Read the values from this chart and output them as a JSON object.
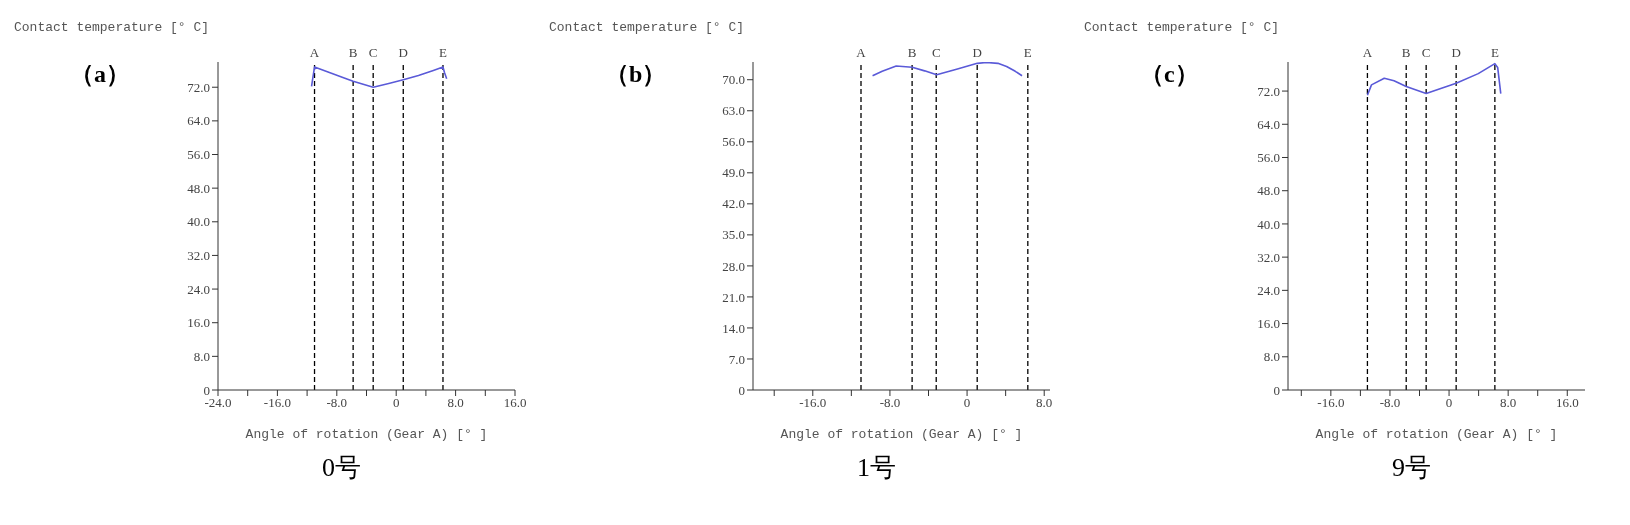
{
  "chart_data": [
    {
      "type": "line",
      "title": "（a）",
      "subtitle": "0号",
      "xlabel": "Angle of rotation (Gear A) [° ]",
      "ylabel": "Contact temperature [° C]",
      "marker": "none",
      "line_style": "solid",
      "xlim": [
        -24,
        16
      ],
      "ylim": [
        0,
        78
      ],
      "xticks": [
        {
          "value": -24,
          "label": "-24.0"
        },
        {
          "value": -20,
          "label": null
        },
        {
          "value": -16,
          "label": "-16.0"
        },
        {
          "value": -12,
          "label": null
        },
        {
          "value": -8,
          "label": "-8.0"
        },
        {
          "value": -4,
          "label": null
        },
        {
          "value": 0,
          "label": "0"
        },
        {
          "value": 4,
          "label": null
        },
        {
          "value": 8,
          "label": "8.0"
        },
        {
          "value": 12,
          "label": null
        },
        {
          "value": 16,
          "label": "16.0"
        }
      ],
      "yticks": [
        {
          "value": 0,
          "label": "0"
        },
        {
          "value": 8,
          "label": "8.0"
        },
        {
          "value": 16,
          "label": "16.0"
        },
        {
          "value": 24,
          "label": "24.0"
        },
        {
          "value": 32,
          "label": "32.0"
        },
        {
          "value": 40,
          "label": "40.0"
        },
        {
          "value": 48,
          "label": "48.0"
        },
        {
          "value": 56,
          "label": "56.0"
        },
        {
          "value": 64,
          "label": "64.0"
        },
        {
          "value": 72,
          "label": "72.0"
        }
      ],
      "series": [
        {
          "color": "#5a5ad8",
          "x": [
            -11.4,
            -11.2,
            -11.0,
            -9,
            -7,
            -5.8,
            -3.1,
            -1,
            0.95,
            3,
            5,
            6.3,
            6.5,
            6.8
          ],
          "values": [
            72.2,
            74.5,
            76.8,
            75.5,
            74.2,
            73.4,
            72.0,
            72.9,
            73.8,
            74.8,
            76.0,
            76.8,
            75.5,
            74.0
          ]
        }
      ],
      "ref_lines": [
        {
          "axis": "x",
          "value": -11.0,
          "label": "A",
          "color": "#000000",
          "line_style": "dashed"
        },
        {
          "axis": "x",
          "value": -5.8,
          "label": "B",
          "color": "#000000",
          "line_style": "dashed"
        },
        {
          "axis": "x",
          "value": -3.1,
          "label": "C",
          "color": "#000000",
          "line_style": "dashed"
        },
        {
          "axis": "x",
          "value": 0.95,
          "label": "D",
          "color": "#000000",
          "line_style": "dashed"
        },
        {
          "axis": "x",
          "value": 6.3,
          "label": "E",
          "color": "#000000",
          "line_style": "dashed"
        }
      ]
    },
    {
      "type": "line",
      "title": "（b）",
      "subtitle": "1号",
      "xlabel": "Angle of rotation (Gear A) [° ]",
      "ylabel": "Contact temperature [° C]",
      "marker": "none",
      "line_style": "solid",
      "xlim": [
        -22.2,
        8.6
      ],
      "ylim": [
        0,
        74
      ],
      "xticks": [
        {
          "value": -20,
          "label": null
        },
        {
          "value": -16,
          "label": "-16.0"
        },
        {
          "value": -12,
          "label": null
        },
        {
          "value": -8,
          "label": "-8.0"
        },
        {
          "value": -4,
          "label": null
        },
        {
          "value": 0,
          "label": "0"
        },
        {
          "value": 4,
          "label": null
        },
        {
          "value": 8,
          "label": "8.0"
        }
      ],
      "yticks": [
        {
          "value": 0,
          "label": "0"
        },
        {
          "value": 7,
          "label": "7.0"
        },
        {
          "value": 14,
          "label": "14.0"
        },
        {
          "value": 21,
          "label": "21.0"
        },
        {
          "value": 28,
          "label": "28.0"
        },
        {
          "value": 35,
          "label": "35.0"
        },
        {
          "value": 42,
          "label": "42.0"
        },
        {
          "value": 49,
          "label": "49.0"
        },
        {
          "value": 56,
          "label": "56.0"
        },
        {
          "value": 63,
          "label": "63.0"
        },
        {
          "value": 70,
          "label": "70.0"
        }
      ],
      "series": [
        {
          "color": "#5a5ad8",
          "x": [
            -9.8,
            -8.8,
            -7.35,
            -5.7,
            -4.4,
            -3.15,
            -1,
            1.06,
            2.0,
            3.2,
            4.1,
            5.0,
            5.7
          ],
          "values": [
            70.9,
            71.9,
            73.1,
            72.8,
            72.0,
            71.1,
            72.4,
            73.7,
            73.9,
            73.7,
            73.0,
            71.9,
            70.9
          ]
        }
      ],
      "ref_lines": [
        {
          "axis": "x",
          "value": -11.0,
          "label": "A",
          "color": "#000000",
          "line_style": "dashed"
        },
        {
          "axis": "x",
          "value": -5.7,
          "label": "B",
          "color": "#000000",
          "line_style": "dashed"
        },
        {
          "axis": "x",
          "value": -3.2,
          "label": "C",
          "color": "#000000",
          "line_style": "dashed"
        },
        {
          "axis": "x",
          "value": 1.05,
          "label": "D",
          "color": "#000000",
          "line_style": "dashed"
        },
        {
          "axis": "x",
          "value": 6.3,
          "label": "E",
          "color": "#000000",
          "line_style": "dashed"
        }
      ]
    },
    {
      "type": "line",
      "title": "（c）",
      "subtitle": "9号",
      "xlabel": "Angle of rotation (Gear A) [° ]",
      "ylabel": "Contact temperature [° C]",
      "marker": "none",
      "line_style": "solid",
      "xlim": [
        -21.8,
        18.4
      ],
      "ylim": [
        0,
        79
      ],
      "xticks": [
        {
          "value": -20,
          "label": null
        },
        {
          "value": -16,
          "label": "-16.0"
        },
        {
          "value": -12,
          "label": null
        },
        {
          "value": -8,
          "label": "-8.0"
        },
        {
          "value": -4,
          "label": null
        },
        {
          "value": 0,
          "label": "0"
        },
        {
          "value": 4,
          "label": null
        },
        {
          "value": 8,
          "label": "8.0"
        },
        {
          "value": 12,
          "label": null
        },
        {
          "value": 16,
          "label": "16.0"
        }
      ],
      "yticks": [
        {
          "value": 0,
          "label": "0"
        },
        {
          "value": 8,
          "label": "8.0"
        },
        {
          "value": 16,
          "label": "16.0"
        },
        {
          "value": 24,
          "label": "24.0"
        },
        {
          "value": 32,
          "label": "32.0"
        },
        {
          "value": 40,
          "label": "40.0"
        },
        {
          "value": 48,
          "label": "48.0"
        },
        {
          "value": 56,
          "label": "56.0"
        },
        {
          "value": 64,
          "label": "64.0"
        },
        {
          "value": 72,
          "label": "72.0"
        }
      ],
      "series": [
        {
          "color": "#5a5ad8",
          "x": [
            -11.05,
            -10.5,
            -8.77,
            -7.45,
            -5.8,
            -3.1,
            0.96,
            3.95,
            6.2,
            6.58,
            7.0
          ],
          "values": [
            71.0,
            73.5,
            75.1,
            74.5,
            73.1,
            71.4,
            73.9,
            76.2,
            78.6,
            77.7,
            71.4
          ]
        }
      ],
      "ref_lines": [
        {
          "axis": "x",
          "value": -11.05,
          "label": "A",
          "color": "#000000",
          "line_style": "dashed"
        },
        {
          "axis": "x",
          "value": -5.8,
          "label": "B",
          "color": "#000000",
          "line_style": "dashed"
        },
        {
          "axis": "x",
          "value": -3.1,
          "label": "C",
          "color": "#000000",
          "line_style": "dashed"
        },
        {
          "axis": "x",
          "value": 0.96,
          "label": "D",
          "color": "#000000",
          "line_style": "dashed"
        },
        {
          "axis": "x",
          "value": 6.2,
          "label": "E",
          "color": "#000000",
          "line_style": "dashed"
        }
      ]
    }
  ]
}
